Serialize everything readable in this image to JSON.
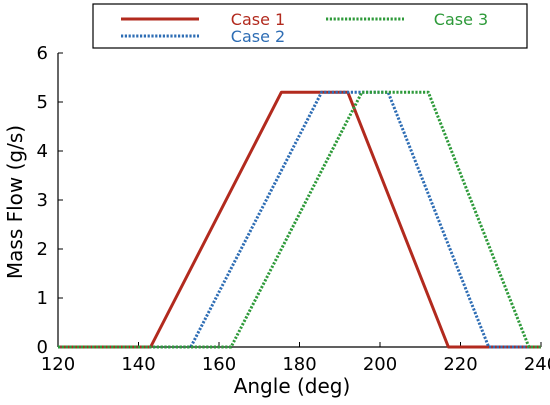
{
  "chart_data": {
    "type": "line",
    "title": "",
    "xlabel": "Angle (deg)",
    "ylabel": "Mass Flow (g/s)",
    "xlim": [
      120,
      240
    ],
    "ylim": [
      0,
      6
    ],
    "x_ticks": [
      120,
      140,
      160,
      180,
      200,
      220,
      240
    ],
    "y_ticks": [
      0,
      1,
      2,
      3,
      4,
      5,
      6
    ],
    "grid": false,
    "legend_position": "top",
    "series": [
      {
        "name": "Case 1",
        "color": "#b22a1e",
        "style": "solid",
        "x": [
          120,
          143,
          175.5,
          192,
          217,
          240
        ],
        "y": [
          0,
          0,
          5.2,
          5.2,
          0,
          0
        ]
      },
      {
        "name": "Case 2",
        "color": "#2e6db4",
        "style": "dotted",
        "x": [
          120,
          153,
          185.5,
          202,
          227,
          240
        ],
        "y": [
          0,
          0,
          5.2,
          5.2,
          0,
          0
        ]
      },
      {
        "name": "Case 3",
        "color": "#2e9a3a",
        "style": "dotted",
        "x": [
          120,
          163,
          195.5,
          212,
          237,
          240
        ],
        "y": [
          0,
          0,
          5.2,
          5.2,
          0,
          0
        ]
      }
    ]
  }
}
